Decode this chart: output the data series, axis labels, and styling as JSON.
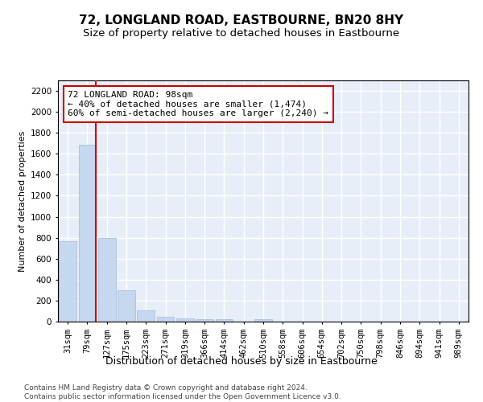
{
  "title": "72, LONGLAND ROAD, EASTBOURNE, BN20 8HY",
  "subtitle": "Size of property relative to detached houses in Eastbourne",
  "xlabel": "Distribution of detached houses by size in Eastbourne",
  "ylabel": "Number of detached properties",
  "categories": [
    "31sqm",
    "79sqm",
    "127sqm",
    "175sqm",
    "223sqm",
    "271sqm",
    "319sqm",
    "366sqm",
    "414sqm",
    "462sqm",
    "510sqm",
    "558sqm",
    "606sqm",
    "654sqm",
    "702sqm",
    "750sqm",
    "798sqm",
    "846sqm",
    "894sqm",
    "941sqm",
    "989sqm"
  ],
  "values": [
    770,
    1690,
    800,
    300,
    110,
    45,
    32,
    25,
    22,
    0,
    20,
    0,
    0,
    0,
    0,
    0,
    0,
    0,
    0,
    0,
    0
  ],
  "bar_color": "#c5d8f0",
  "bar_edge_color": "#a0bbda",
  "vline_color": "#cc0000",
  "annotation_text": "72 LONGLAND ROAD: 98sqm\n← 40% of detached houses are smaller (1,474)\n60% of semi-detached houses are larger (2,240) →",
  "annotation_box_color": "#ffffff",
  "annotation_border_color": "#cc0000",
  "ylim": [
    0,
    2300
  ],
  "yticks": [
    0,
    200,
    400,
    600,
    800,
    1000,
    1200,
    1400,
    1600,
    1800,
    2000,
    2200
  ],
  "bg_color": "#e8eef8",
  "grid_color": "#ffffff",
  "footer": "Contains HM Land Registry data © Crown copyright and database right 2024.\nContains public sector information licensed under the Open Government Licence v3.0.",
  "title_fontsize": 11,
  "subtitle_fontsize": 9.5,
  "xlabel_fontsize": 9,
  "ylabel_fontsize": 8,
  "tick_fontsize": 7.5,
  "annotation_fontsize": 8,
  "footer_fontsize": 6.5
}
